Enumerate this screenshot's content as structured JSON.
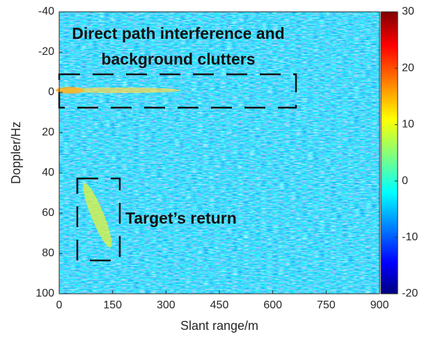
{
  "chart_data": {
    "type": "heatmap",
    "xlabel": "Slant range/m",
    "ylabel": "Doppler/Hz",
    "xlim": [
      0,
      900
    ],
    "xticks": [
      0,
      150,
      300,
      450,
      600,
      750,
      900
    ],
    "ylim": [
      -40,
      100
    ],
    "yticks": [
      -40,
      -20,
      0,
      20,
      40,
      60,
      80,
      100
    ],
    "colorbar": {
      "lim": [
        -20,
        30
      ],
      "ticks": [
        -20,
        -10,
        0,
        10,
        20,
        30
      ],
      "colormap": "jet"
    },
    "annotations": [
      "Direct path interference and",
      "background clutters",
      "Target’s return"
    ]
  }
}
